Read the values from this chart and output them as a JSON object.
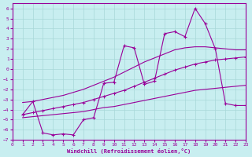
{
  "xlabel": "Windchill (Refroidissement éolien,°C)",
  "background_color": "#c8eef0",
  "grid_color": "#a8d8d8",
  "line_color": "#990099",
  "xlim": [
    0,
    23
  ],
  "ylim": [
    -7,
    6.5
  ],
  "xticks": [
    0,
    1,
    2,
    3,
    4,
    5,
    6,
    7,
    8,
    9,
    10,
    11,
    12,
    13,
    14,
    15,
    16,
    17,
    18,
    19,
    20,
    21,
    22,
    23
  ],
  "yticks": [
    -7,
    -6,
    -5,
    -4,
    -3,
    -2,
    -1,
    0,
    1,
    2,
    3,
    4,
    5,
    6
  ],
  "jagged_x": [
    1,
    2,
    3,
    4,
    5,
    6,
    7,
    8,
    9,
    10,
    11,
    12,
    13,
    14,
    15,
    16,
    17,
    18,
    19,
    20,
    21,
    22,
    23
  ],
  "jagged_y": [
    -4.5,
    -3.2,
    -6.3,
    -6.5,
    -6.4,
    -6.5,
    -5.0,
    -4.8,
    -1.4,
    -1.3,
    2.3,
    2.1,
    -1.5,
    -1.2,
    3.5,
    3.7,
    3.2,
    6.0,
    4.5,
    2.0,
    -3.4,
    -3.6,
    -3.6
  ],
  "line_smooth_upper_x": [
    1,
    2,
    3,
    4,
    5,
    6,
    7,
    8,
    9,
    10,
    11,
    12,
    13,
    14,
    15,
    16,
    17,
    18,
    19,
    20,
    21,
    22,
    23
  ],
  "line_smooth_upper_y": [
    -3.3,
    -3.2,
    -3.0,
    -2.8,
    -2.6,
    -2.3,
    -2.0,
    -1.6,
    -1.2,
    -0.8,
    -0.3,
    0.2,
    0.7,
    1.1,
    1.5,
    1.9,
    2.1,
    2.2,
    2.2,
    2.1,
    2.0,
    1.9,
    1.9
  ],
  "line_smooth_mid_x": [
    1,
    2,
    3,
    4,
    5,
    6,
    7,
    8,
    9,
    10,
    11,
    12,
    13,
    14,
    15,
    16,
    17,
    18,
    19,
    20,
    21,
    22,
    23
  ],
  "line_smooth_mid_y": [
    -4.5,
    -4.3,
    -4.1,
    -3.9,
    -3.7,
    -3.5,
    -3.3,
    -3.0,
    -2.7,
    -2.4,
    -2.1,
    -1.7,
    -1.3,
    -0.9,
    -0.5,
    -0.1,
    0.2,
    0.5,
    0.7,
    0.9,
    1.0,
    1.1,
    1.2
  ],
  "line_smooth_lower_x": [
    1,
    2,
    3,
    4,
    5,
    6,
    7,
    8,
    9,
    10,
    11,
    12,
    13,
    14,
    15,
    16,
    17,
    18,
    19,
    20,
    21,
    22,
    23
  ],
  "line_smooth_lower_y": [
    -4.8,
    -4.7,
    -4.6,
    -4.5,
    -4.4,
    -4.3,
    -4.2,
    -4.0,
    -3.8,
    -3.7,
    -3.5,
    -3.3,
    -3.1,
    -2.9,
    -2.7,
    -2.5,
    -2.3,
    -2.1,
    -2.0,
    -1.9,
    -1.8,
    -1.7,
    -1.6
  ]
}
